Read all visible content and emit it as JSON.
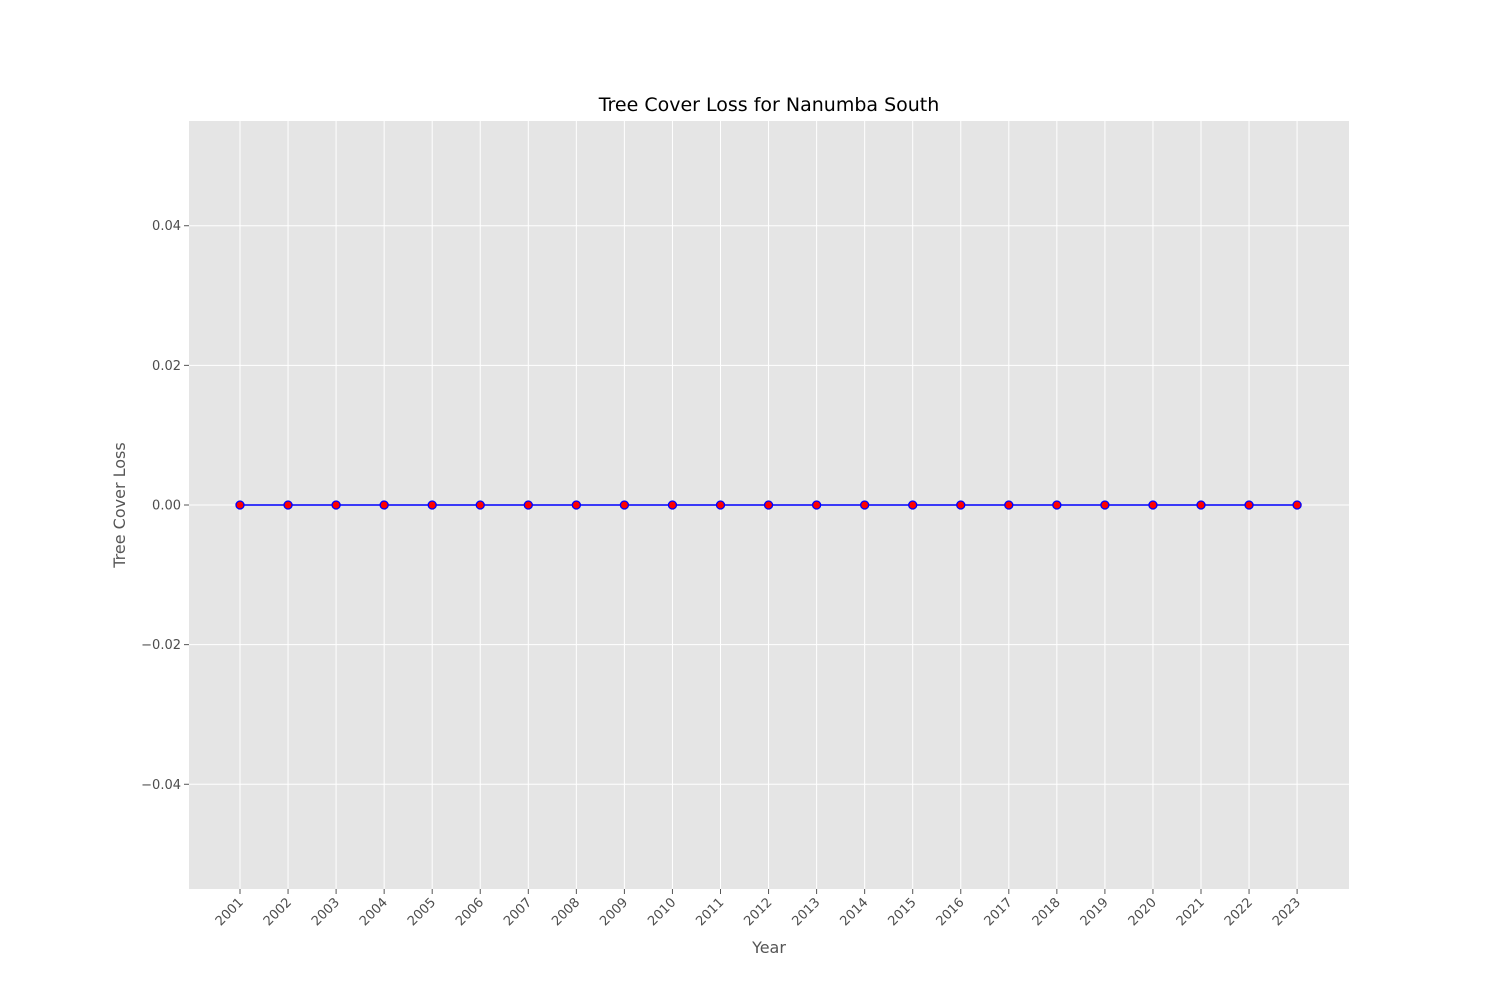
{
  "chart_data": {
    "type": "line",
    "title": "Tree Cover Loss for Nanumba South",
    "xlabel": "Year",
    "ylabel": "Tree Cover Loss",
    "x": [
      "2001",
      "2002",
      "2003",
      "2004",
      "2005",
      "2006",
      "2007",
      "2008",
      "2009",
      "2010",
      "2011",
      "2012",
      "2013",
      "2014",
      "2015",
      "2016",
      "2017",
      "2018",
      "2019",
      "2020",
      "2021",
      "2022",
      "2023"
    ],
    "series": [
      {
        "values": [
          0,
          0,
          0,
          0,
          0,
          0,
          0,
          0,
          0,
          0,
          0,
          0,
          0,
          0,
          0,
          0,
          0,
          0,
          0,
          0,
          0,
          0,
          0
        ],
        "line_color": "#0000ff",
        "marker_fill": "#ff0000",
        "marker_edge": "#0000ff"
      }
    ],
    "ylim": [
      -0.055,
      0.055
    ],
    "yticks": [
      -0.04,
      -0.02,
      0.0,
      0.02,
      0.04
    ],
    "ytick_labels": [
      "−0.04",
      "−0.02",
      "0.00",
      "0.02",
      "0.04"
    ],
    "grid": true,
    "background_color": "#e5e5e5",
    "grid_color": "#ffffff"
  }
}
